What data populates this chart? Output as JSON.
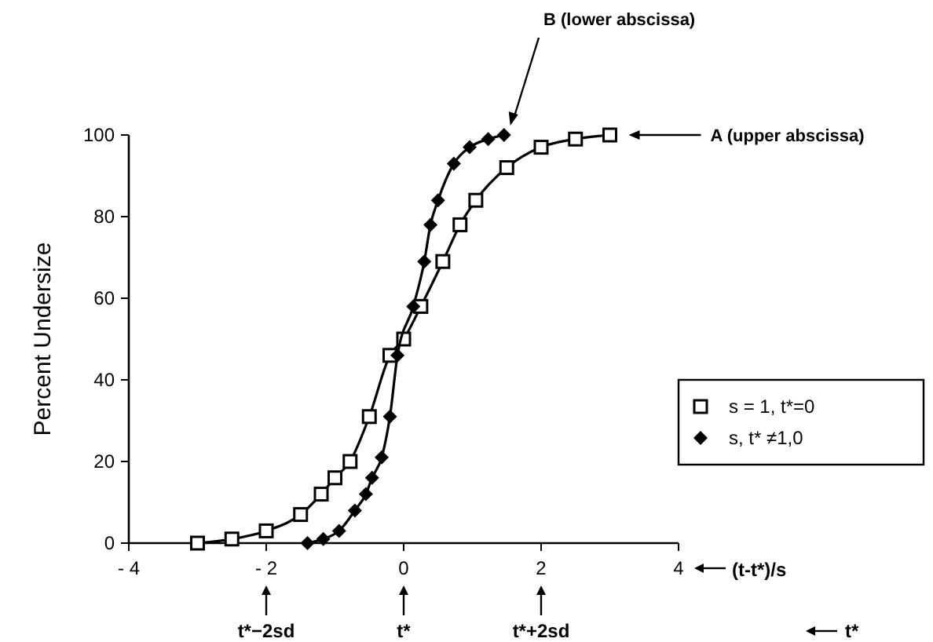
{
  "chart_data": {
    "type": "line",
    "ylabel": "Percent Undersize",
    "xlabel": "(t-t*)/s",
    "x2label": "t*",
    "xlim": [
      -4,
      4
    ],
    "xticks": [
      {
        "value": -4,
        "label": "- 4"
      },
      {
        "value": -2,
        "label": "- 2"
      },
      0,
      2,
      4
    ],
    "x2lim": [
      -4,
      4
    ],
    "x2ticks": [
      {
        "value": -2,
        "label": "t*−2sd"
      },
      {
        "value": 0,
        "label": "t*"
      },
      {
        "value": 2,
        "label": "t*+2sd"
      }
    ],
    "ylim": [
      0,
      100
    ],
    "yticks": [
      0,
      20,
      40,
      60,
      80,
      100
    ],
    "grid": false,
    "legend": "right",
    "line_style": "solid",
    "series": [
      {
        "name": "s = 1, t*=0",
        "color": "#000000",
        "marker": "square",
        "x": [
          -3,
          -2.5,
          -2,
          -1.5,
          -1.2,
          -1,
          -0.78,
          -0.5,
          -0.2,
          0,
          0.25,
          0.57,
          0.82,
          1.05,
          1.5,
          2,
          2.5,
          3
        ],
        "values": [
          0,
          1,
          3,
          7,
          12,
          16,
          20,
          31,
          46,
          50,
          58,
          69,
          78,
          84,
          92,
          97,
          99,
          100
        ]
      },
      {
        "name": "s, t* ≠1,0",
        "color": "#000000",
        "marker": "diamond",
        "x": [
          -1.4,
          -1.17,
          -0.94,
          -0.71,
          -0.55,
          -0.46,
          -0.32,
          -0.2,
          -0.09,
          0.14,
          0.3,
          0.39,
          0.5,
          0.73,
          0.96,
          1.23,
          1.46
        ],
        "values": [
          0,
          1,
          3,
          8,
          12,
          16,
          21,
          31,
          46,
          58,
          69,
          78,
          84,
          93,
          97,
          99,
          100
        ]
      }
    ],
    "annotations": [
      "B (lower abscissa)",
      "A (upper abscissa)"
    ]
  }
}
